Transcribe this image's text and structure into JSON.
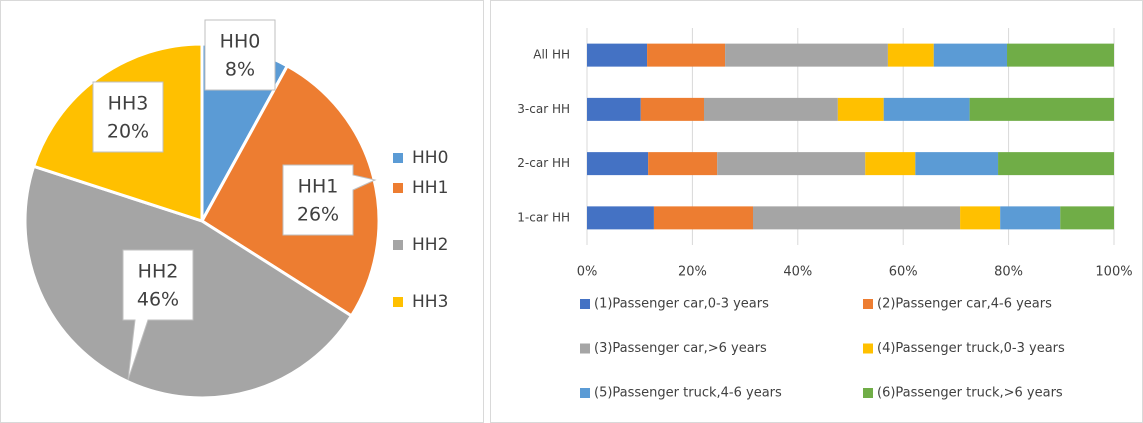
{
  "chart_data": [
    {
      "type": "pie",
      "categories": [
        "HH0",
        "HH1",
        "HH2",
        "HH3"
      ],
      "values": [
        8,
        26,
        46,
        20
      ],
      "value_labels": [
        "8%",
        "26%",
        "46%",
        "20%"
      ],
      "colors": [
        "#5b9bd5",
        "#ed7d31",
        "#a5a5a5",
        "#ffc000"
      ],
      "legend": "right"
    },
    {
      "type": "stacked_bar_horizontal",
      "categories": [
        "All HH",
        "3-car HH",
        "2-car HH",
        "1-car HH"
      ],
      "series": [
        {
          "name": "(1)Passenger car,0-3 years",
          "color": "#4472c4",
          "values": [
            11.4,
            10.2,
            11.6,
            12.7
          ]
        },
        {
          "name": "(2)Passenger car,4-6 years",
          "color": "#ed7d31",
          "values": [
            14.8,
            12.0,
            13.1,
            18.8
          ]
        },
        {
          "name": "(3)Passenger car,>6 years",
          "color": "#a5a5a5",
          "values": [
            30.9,
            25.4,
            28.1,
            39.3
          ]
        },
        {
          "name": "(4)Passenger truck,0-3 years",
          "color": "#ffc000",
          "values": [
            8.7,
            8.7,
            9.5,
            7.6
          ]
        },
        {
          "name": "(5)Passenger truck,4-6 years",
          "color": "#5b9bd5",
          "values": [
            13.9,
            16.3,
            15.7,
            11.4
          ]
        },
        {
          "name": "(6)Passenger truck,>6 years",
          "color": "#70ad47",
          "values": [
            20.3,
            27.4,
            22.0,
            10.2
          ]
        }
      ],
      "xlim": [
        0,
        100
      ],
      "xticks": [
        {
          "value": 0,
          "label": "0%"
        },
        {
          "value": 20,
          "label": "20%"
        },
        {
          "value": 40,
          "label": "40%"
        },
        {
          "value": 60,
          "label": "60%"
        },
        {
          "value": 80,
          "label": "80%"
        },
        {
          "value": 100,
          "label": "100%"
        }
      ],
      "grid": true,
      "legend": "bottom"
    }
  ]
}
